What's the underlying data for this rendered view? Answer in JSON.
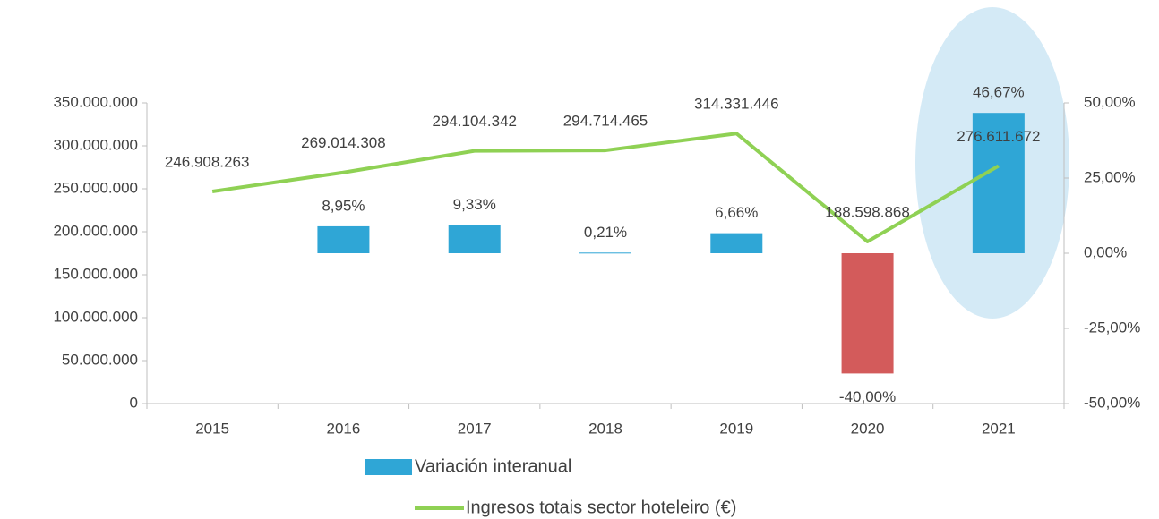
{
  "chart_data": {
    "type": "combo",
    "categories": [
      "2015",
      "2016",
      "2017",
      "2018",
      "2019",
      "2020",
      "2021"
    ],
    "series": [
      {
        "name": "Variación interanual",
        "type": "bar",
        "axis": "y2",
        "color": "#2fa6d6",
        "colors": [
          null,
          "#2fa6d6",
          "#2fa6d6",
          "#2fa6d6",
          "#2fa6d6",
          "#d35b5b",
          "#2fa6d6"
        ],
        "values": [
          null,
          8.95,
          9.33,
          0.21,
          6.66,
          -40,
          46.67
        ],
        "value_labels": [
          null,
          "8,95%",
          "9,33%",
          "0,21%",
          "6,66%",
          "-40,00%",
          "46,67%"
        ]
      },
      {
        "name": "Ingresos totais sector hoteleiro (€)",
        "type": "line",
        "color": "#8fd154",
        "values": [
          246908263,
          269014308,
          294104342,
          294714465,
          314331446,
          188598868,
          276611672
        ],
        "value_labels": [
          "246.908.263",
          "269.014.308",
          "294.104.342",
          "294.714.465",
          "314.331.446",
          "188.598.868",
          "276.611.672"
        ]
      }
    ],
    "ylim": [
      0,
      350000000
    ],
    "yticks": [
      0,
      {
        "value": 50000000,
        "label": "50.000.000"
      },
      {
        "value": 100000000,
        "label": "100.000.000"
      },
      {
        "value": 150000000,
        "label": "150.000.000"
      },
      {
        "value": 200000000,
        "label": "200.000.000"
      },
      {
        "value": 250000000,
        "label": "250.000.000"
      },
      {
        "value": 300000000,
        "label": "300.000.000"
      },
      {
        "value": 350000000,
        "label": "350.000.000"
      }
    ],
    "y2lim": [
      -50,
      50
    ],
    "y2ticks": [
      {
        "value": -50,
        "label": "-50,00%"
      },
      {
        "value": -25,
        "label": "-25,00%"
      },
      {
        "value": 0,
        "label": "0,00%"
      },
      {
        "value": 25,
        "label": "25,00%"
      },
      {
        "value": 50,
        "label": "50,00%"
      }
    ],
    "legend": "bottom"
  }
}
